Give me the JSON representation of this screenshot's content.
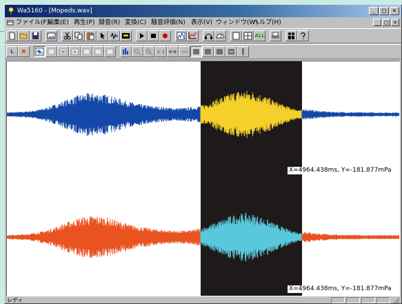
{
  "window": {
    "title": "Wa5160 - [Mopeds.wav]",
    "buttons": [
      "_",
      "□",
      "×"
    ]
  },
  "menu": {
    "items": [
      "ファイル(F)",
      "編集(E)",
      "再生(P)",
      "録音(R)",
      "変換(C)",
      "騒音評価(N)",
      "表示(V)",
      "ウィンドウ(W)",
      "ヘルプ(H)"
    ]
  },
  "toolbar": {
    "all_label": "ALL",
    "l_label": "L",
    "r_label": "R"
  },
  "plot": {
    "readout_top": "X=4964.438ms, Y=-181.877mPa",
    "readout_bottom": "X=4964.438ms, Y=-181.877mPa",
    "colors": {
      "ch1": "#1448a8",
      "ch1_selected": "#f5cf2a",
      "ch2": "#ea5220",
      "ch2_selected": "#5ac8dc",
      "selection_bg": "#1e1a1a",
      "background": "#ffffff"
    }
  },
  "status": {
    "text": "レディ"
  }
}
